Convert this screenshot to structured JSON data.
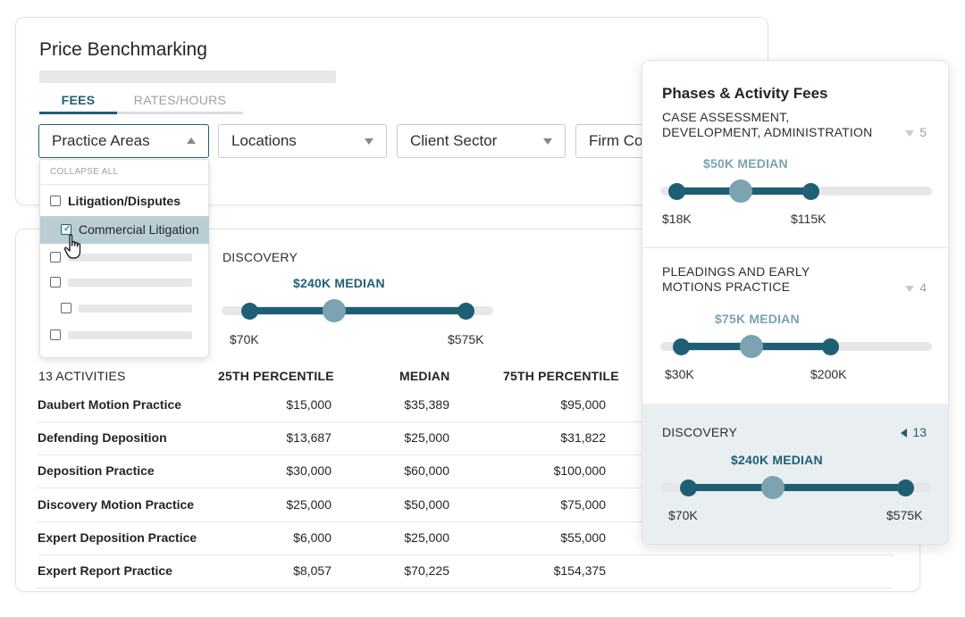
{
  "header": {
    "title": "Price Benchmarking"
  },
  "tabs": [
    {
      "label": "FEES",
      "active": true
    },
    {
      "label": "RATES/HOURS",
      "active": false
    }
  ],
  "filters": {
    "practice_areas": "Practice Areas",
    "locations": "Locations",
    "client_sector": "Client Sector",
    "firm": "Firm Co"
  },
  "dropdown": {
    "collapse_all": "COLLAPSE ALL",
    "items": [
      {
        "label": "Litigation/Disputes",
        "checked": false
      },
      {
        "label": "Commercial Litigation",
        "checked": true
      }
    ]
  },
  "discovery_summary": {
    "label": "DISCOVERY",
    "median_label": "$240K MEDIAN",
    "min": "$70K",
    "max": "$575K",
    "range": [
      70,
      575
    ],
    "median": 240
  },
  "table": {
    "activity_count": "13 ACTIVITIES",
    "columns": [
      "25TH PERCENTILE",
      "MEDIAN",
      "75TH PERCENTILE"
    ],
    "rows": [
      {
        "name": "Daubert Motion Practice",
        "p25": "$15,000",
        "median": "$35,389",
        "p75": "$95,000"
      },
      {
        "name": "Defending Deposition",
        "p25": "$13,687",
        "median": "$25,000",
        "p75": "$31,822"
      },
      {
        "name": "Deposition Practice",
        "p25": "$30,000",
        "median": "$60,000",
        "p75": "$100,000"
      },
      {
        "name": "Discovery Motion Practice",
        "p25": "$25,000",
        "median": "$50,000",
        "p75": "$75,000"
      },
      {
        "name": "Expert Deposition Practice",
        "p25": "$6,000",
        "median": "$25,000",
        "p75": "$55,000"
      },
      {
        "name": "Expert Report Practice",
        "p25": "$8,057",
        "median": "$70,225",
        "p75": "$154,375"
      }
    ]
  },
  "panel": {
    "title": "Phases & Activity Fees",
    "phases": [
      {
        "name_line1": "CASE ASSESSMENT,",
        "name_line2": "DEVELOPMENT, ADMINISTRATION",
        "count": "5",
        "median_label": "$50K MEDIAN",
        "min": "$18K",
        "max": "$115K",
        "active": false
      },
      {
        "name_line1": "PLEADINGS AND EARLY",
        "name_line2": "MOTIONS PRACTICE",
        "count": "4",
        "median_label": "$75K MEDIAN",
        "min": "$30K",
        "max": "$200K",
        "active": false
      },
      {
        "name_line1": "DISCOVERY",
        "name_line2": "",
        "count": "13",
        "median_label": "$240K MEDIAN",
        "min": "$70K",
        "max": "$575K",
        "active": true
      }
    ]
  },
  "colors": {
    "accent": "#1e5f74",
    "median_knob": "#7ba3b2",
    "median_text_light": "#7ba3b2",
    "highlight": "#b9ced4",
    "panel_active_bg": "#e9eef1"
  },
  "icons": {
    "caret": "chevron-down-icon",
    "caret_up": "chevron-up-icon",
    "cursor": "hand-pointer-icon",
    "phase_collapsed": "triangle-down-icon",
    "phase_active": "triangle-left-icon"
  }
}
